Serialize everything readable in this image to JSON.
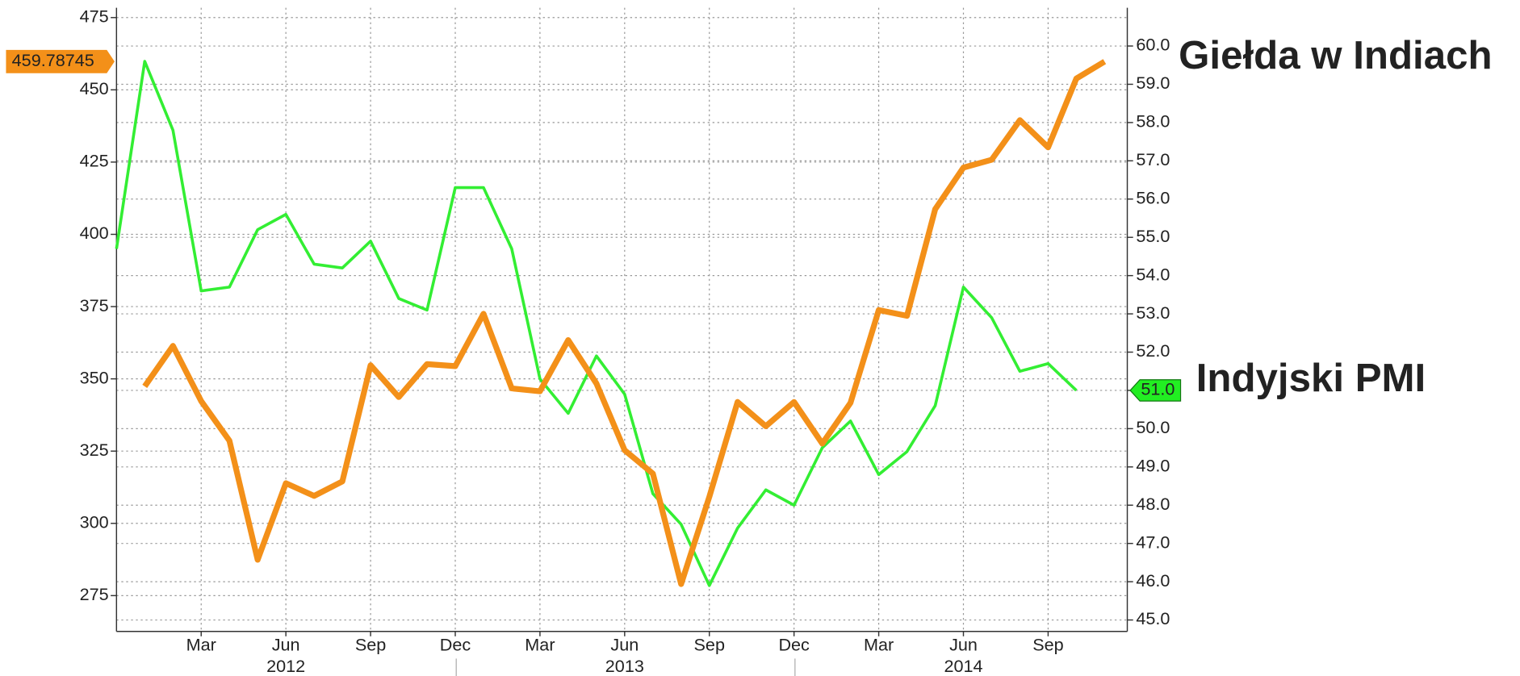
{
  "chart_data": {
    "type": "line",
    "categories": [
      null,
      null,
      null,
      "Mar",
      null,
      null,
      "Jun",
      null,
      null,
      "Sep",
      null,
      null,
      "Dec",
      null,
      null,
      "Mar",
      null,
      null,
      "Jun",
      null,
      null,
      "Sep",
      null,
      null,
      "Dec",
      null,
      null,
      "Mar",
      null,
      null,
      "Jun",
      null,
      null,
      "Sep",
      null,
      null
    ],
    "years": [
      "2012",
      "2013",
      "2014"
    ],
    "series": [
      {
        "name": "Giełda w Indiach",
        "color": "#f39019",
        "axis": "y",
        "values": [
          null,
          347.4,
          361.4,
          342.3,
          328.6,
          287.4,
          313.9,
          309.5,
          314.5,
          354.7,
          343.7,
          355.1,
          354.4,
          372.5,
          346.7,
          345.7,
          363.4,
          348.4,
          325.3,
          317.2,
          279.0,
          309.2,
          342.0,
          333.6,
          342.0,
          327.6,
          341.7,
          373.8,
          371.8,
          408.7,
          423.1,
          425.8,
          439.5,
          430.1,
          453.9,
          459.78745
        ]
      },
      {
        "name": "Indyjski PMI",
        "color": "#33ee33",
        "axis": "y2",
        "values": [
          54.7,
          59.6,
          57.8,
          53.6,
          53.7,
          55.2,
          55.6,
          54.3,
          54.2,
          54.9,
          53.4,
          53.1,
          56.3,
          56.3,
          54.7,
          51.3,
          50.4,
          51.9,
          50.9,
          48.3,
          47.5,
          45.9,
          47.4,
          48.4,
          48.0,
          49.5,
          50.2,
          48.8,
          49.4,
          50.6,
          53.7,
          52.9,
          51.5,
          51.7,
          51.0,
          null
        ],
        "value_labels": [
          null,
          null,
          null,
          null,
          null,
          null,
          null,
          null,
          null,
          null,
          null,
          null,
          null,
          null,
          null,
          null,
          null,
          null,
          null,
          null,
          null,
          null,
          null,
          null,
          null,
          null,
          null,
          null,
          null,
          null,
          null,
          null,
          null,
          null,
          "51.0",
          null
        ]
      }
    ],
    "ylim": [
      262.6,
      478.4
    ],
    "yticks": [
      275,
      300,
      325,
      350,
      375,
      400,
      425,
      450,
      475
    ],
    "y2lim": [
      44.7,
      61.0
    ],
    "y2ticks": [
      {
        "value": 45,
        "label": "45.0"
      },
      {
        "value": 46,
        "label": "46.0"
      },
      {
        "value": 47,
        "label": "47.0"
      },
      {
        "value": 48,
        "label": "48.0"
      },
      {
        "value": 49,
        "label": "49.0"
      },
      {
        "value": 50,
        "label": "50.0"
      },
      {
        "value": 51,
        "label": "51.0"
      },
      {
        "value": 52,
        "label": "52.0"
      },
      {
        "value": 53,
        "label": "53.0"
      },
      {
        "value": 54,
        "label": "54.0"
      },
      {
        "value": 55,
        "label": "55.0"
      },
      {
        "value": 56,
        "label": "56.0"
      },
      {
        "value": 57,
        "label": "57.0"
      },
      {
        "value": 58,
        "label": "58.0"
      },
      {
        "value": 59,
        "label": "59.0"
      },
      {
        "value": 60,
        "label": "60.0"
      }
    ],
    "grid": true
  }
}
